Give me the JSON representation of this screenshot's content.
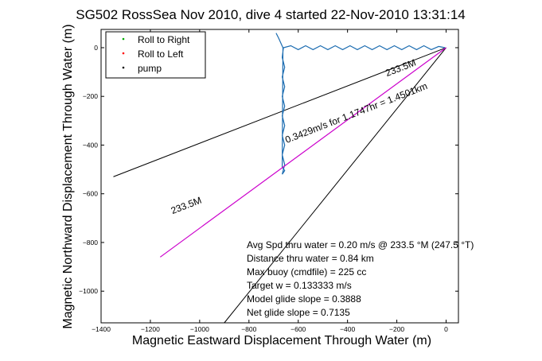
{
  "chart_data": {
    "type": "line",
    "title": "SG502 RossSea Nov 2010, dive 4 started 22-Nov-2010 13:31:14",
    "xlabel": "Magnetic Eastward Displacement Through Water (m)",
    "ylabel": "Magnetic Northward Displacement Through Water (m)",
    "xlim": [
      -1400,
      50
    ],
    "ylim": [
      -1130,
      75
    ],
    "xticks": [
      -1400,
      -1200,
      -1000,
      -800,
      -600,
      -400,
      -200,
      0
    ],
    "yticks": [
      0,
      -200,
      -400,
      -600,
      -800,
      -1000
    ],
    "grid": false,
    "legend": {
      "placement": "top-left",
      "entries": [
        {
          "label": "Roll to Right",
          "color": "#00aa00",
          "marker": "dot"
        },
        {
          "label": "Roll to Left",
          "color": "#ff0000",
          "marker": "dot"
        },
        {
          "label": "pump",
          "color": "#000000",
          "marker": "dot"
        }
      ]
    },
    "series": [
      {
        "color": "#1a6bb0",
        "x": [
          -5,
          -30,
          -60,
          -90,
          -120,
          -150,
          -180,
          -210,
          -240,
          -270,
          -300,
          -330,
          -360,
          -390,
          -420,
          -450,
          -480,
          -510,
          -540,
          -570,
          -600,
          -630,
          -660,
          -665,
          -655,
          -665,
          -655,
          -665,
          -655,
          -665,
          -655,
          -665,
          -655,
          -665,
          -655,
          -665,
          -655,
          -665,
          -662,
          -680,
          -690
        ],
        "y": [
          0,
          5,
          -8,
          8,
          -8,
          8,
          -8,
          8,
          -8,
          8,
          -8,
          8,
          -8,
          8,
          -8,
          8,
          -8,
          8,
          -8,
          8,
          -8,
          8,
          0,
          -40,
          -80,
          -120,
          -160,
          -200,
          -240,
          -280,
          -320,
          -360,
          -400,
          -440,
          -480,
          -520,
          -505,
          -490,
          0,
          40,
          60
        ]
      },
      {
        "name": "",
        "color": "#cc00cc",
        "x": [
          0,
          -1160
        ],
        "y": [
          0,
          -860
        ]
      }
    ],
    "reference_lines": [
      {
        "x": [
          0,
          -1350
        ],
        "y": [
          0,
          -530
        ]
      },
      {
        "x": [
          0,
          -900
        ],
        "y": [
          0,
          -1130
        ]
      }
    ],
    "annotations": [
      {
        "text": "233.5M",
        "x": -180,
        "y": -95
      },
      {
        "text": "0.3429m/s for 1.1747hr = 1.4501km",
        "x": -360,
        "y": -280
      },
      {
        "text": "233.5M",
        "x": -1050,
        "y": -660
      }
    ],
    "info_lines": [
      "Avg Spd thru water =  0.20 m/s @ 233.5    °M (247.5 °T)",
      "Distance thru water =  0.84 km",
      "Max buoy (cmdfile) = 225 cc",
      "Target w = 0.133333 m/s",
      "Model glide slope = 0.3888",
      "Net glide slope = 0.7135"
    ]
  }
}
